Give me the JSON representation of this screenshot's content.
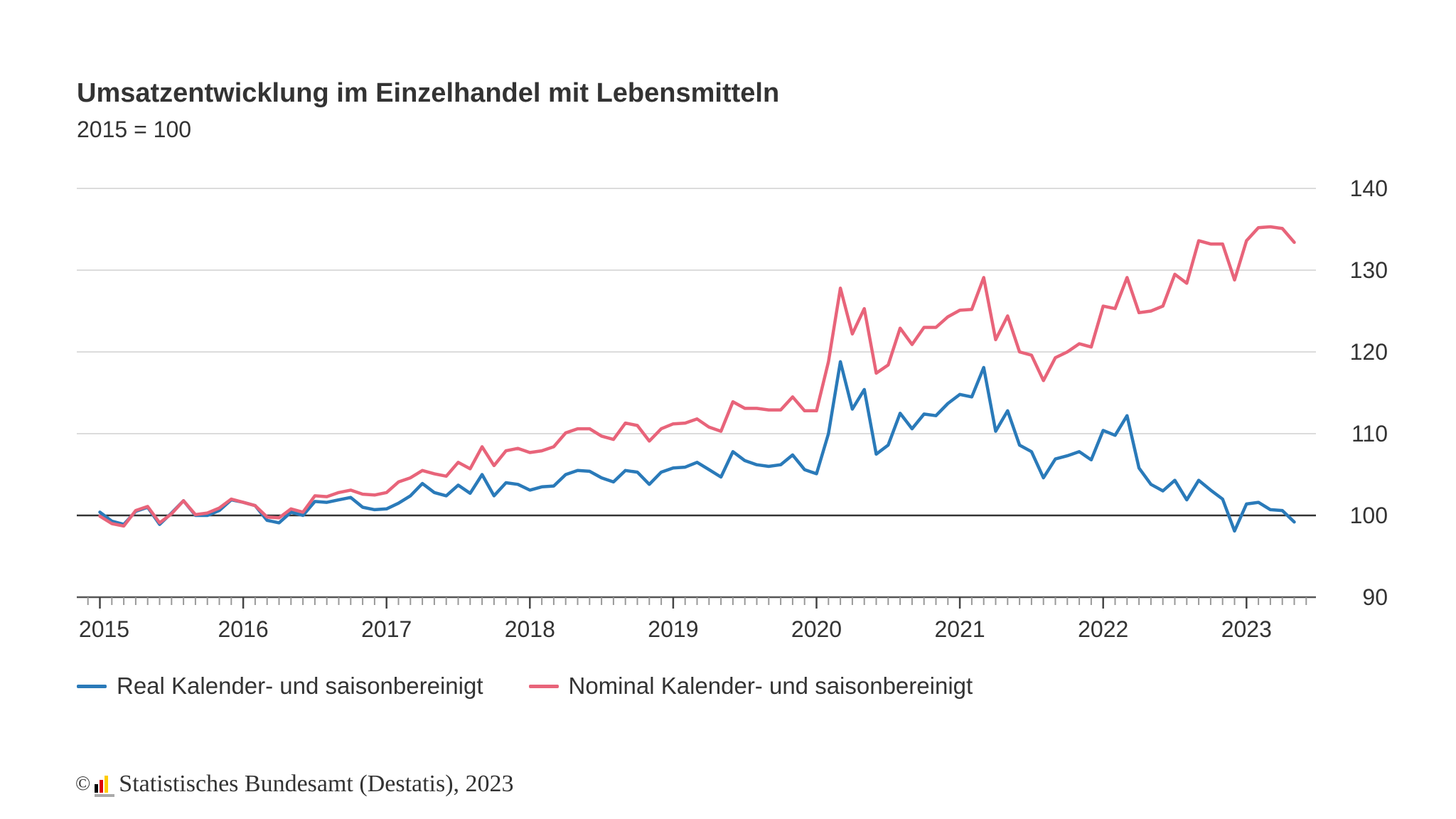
{
  "chart_data": {
    "type": "line",
    "title": "Umsatzentwicklung im Einzelhandel mit Lebensmitteln",
    "subtitle": "2015 = 100",
    "x_start": "2015-01",
    "x_end": "2023-05",
    "x_frequency": "monthly",
    "x_tick_labels": [
      "2015",
      "2016",
      "2017",
      "2018",
      "2019",
      "2020",
      "2021",
      "2022",
      "2023"
    ],
    "y_tick_labels": [
      "90",
      "100",
      "110",
      "120",
      "130",
      "140"
    ],
    "ylim": [
      90,
      140
    ],
    "y_axis_position": "right",
    "reference_line": 100,
    "grid": true,
    "legend_position": "bottom",
    "series": [
      {
        "name": "Real Kalender- und saisonbereinigt",
        "color": "#2a7ab9",
        "values": [
          100.4,
          99.3,
          98.9,
          100.5,
          101.0,
          98.9,
          100.3,
          101.8,
          100.0,
          100.0,
          100.6,
          101.9,
          101.6,
          101.2,
          99.4,
          99.1,
          100.4,
          100.0,
          101.7,
          101.6,
          101.9,
          102.2,
          101.0,
          100.7,
          100.8,
          101.5,
          102.4,
          103.9,
          102.8,
          102.4,
          103.7,
          102.7,
          105.0,
          102.4,
          104.0,
          103.8,
          103.1,
          103.5,
          103.6,
          105.0,
          105.5,
          105.4,
          104.6,
          104.1,
          105.5,
          105.3,
          103.8,
          105.3,
          105.8,
          105.9,
          106.5,
          105.6,
          104.7,
          107.8,
          106.7,
          106.2,
          106.0,
          106.2,
          107.4,
          105.6,
          105.1,
          110.0,
          118.8,
          113.0,
          115.4,
          107.5,
          108.6,
          112.5,
          110.6,
          112.4,
          112.2,
          113.7,
          114.8,
          114.5,
          118.1,
          110.3,
          112.8,
          108.6,
          107.8,
          104.6,
          106.9,
          107.3,
          107.8,
          106.8,
          110.4,
          109.8,
          112.2,
          105.8,
          103.8,
          103.0,
          104.3,
          101.9,
          104.3,
          103.1,
          102.0,
          98.1,
          101.4,
          101.6,
          100.7,
          100.6,
          99.2
        ]
      },
      {
        "name": "Nominal Kalender- und saisonbereinigt",
        "color": "#e8647a",
        "values": [
          99.9,
          99.0,
          98.7,
          100.6,
          101.1,
          99.1,
          100.2,
          101.8,
          100.1,
          100.3,
          100.9,
          102.0,
          101.6,
          101.2,
          99.8,
          99.7,
          100.8,
          100.4,
          102.4,
          102.3,
          102.8,
          103.1,
          102.6,
          102.5,
          102.8,
          104.1,
          104.6,
          105.5,
          105.1,
          104.8,
          106.5,
          105.7,
          108.4,
          106.1,
          107.9,
          108.2,
          107.7,
          107.9,
          108.4,
          110.1,
          110.6,
          110.6,
          109.7,
          109.3,
          111.3,
          111.0,
          109.1,
          110.6,
          111.2,
          111.3,
          111.8,
          110.8,
          110.3,
          113.9,
          113.1,
          113.1,
          112.9,
          112.9,
          114.5,
          112.8,
          112.8,
          118.8,
          127.8,
          122.2,
          125.3,
          117.4,
          118.4,
          122.9,
          120.9,
          123.0,
          123.0,
          124.3,
          125.1,
          125.2,
          129.1,
          121.5,
          124.4,
          120.0,
          119.6,
          116.5,
          119.3,
          120.0,
          121.0,
          120.6,
          125.6,
          125.3,
          129.1,
          124.8,
          125.0,
          125.6,
          129.5,
          128.4,
          133.6,
          133.2,
          133.2,
          128.8,
          133.6,
          135.2,
          135.3,
          135.1,
          133.4
        ]
      }
    ]
  },
  "footer": {
    "copyright_symbol": "©",
    "source": "Statistisches Bundesamt (Destatis), 2023",
    "logo_colors": [
      "#000000",
      "#dd0000",
      "#ffcc00"
    ]
  }
}
